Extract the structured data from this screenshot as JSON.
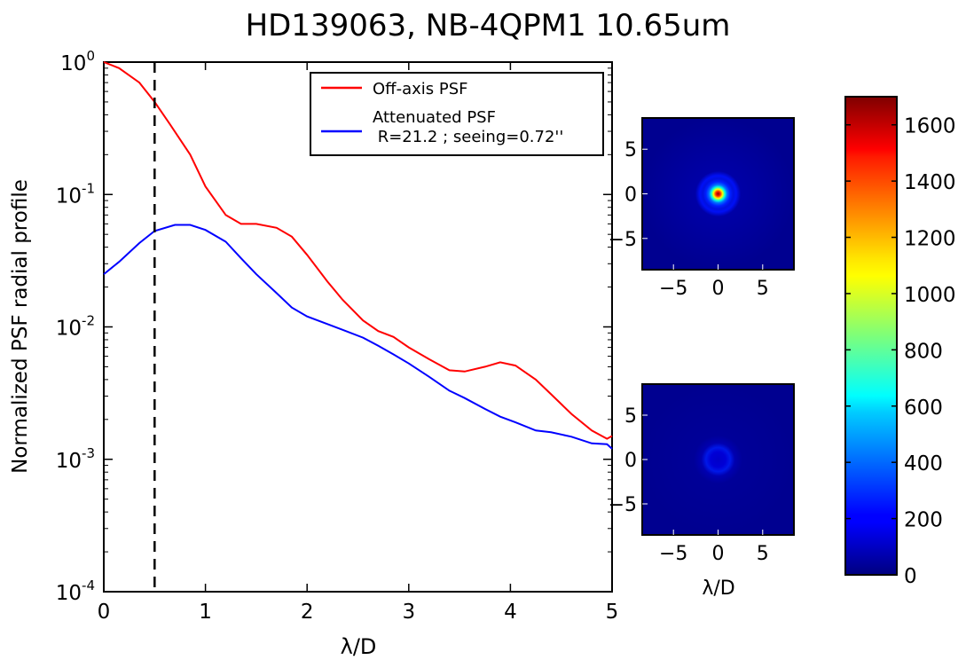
{
  "figure": {
    "title": "HD139063, NB-4QPM1 10.65um"
  },
  "chart_data": [
    {
      "type": "line",
      "title": "HD139063, NB-4QPM1 10.65um",
      "xlabel": "λ/D",
      "ylabel": "Normalized PSF radial profile",
      "xlim": [
        0,
        5
      ],
      "ylim": [
        0.0001,
        1
      ],
      "yscale": "log",
      "grid": false,
      "legend_position": "top-right",
      "x_ticks": [
        "0",
        "1",
        "2",
        "3",
        "4",
        "5"
      ],
      "y_ticks": [
        {
          "value": 1,
          "base": "10",
          "exp": "0"
        },
        {
          "value": 0.1,
          "base": "10",
          "exp": "-1"
        },
        {
          "value": 0.01,
          "base": "10",
          "exp": "-2"
        },
        {
          "value": 0.001,
          "base": "10",
          "exp": "-3"
        },
        {
          "value": 0.0001,
          "base": "10",
          "exp": "-4"
        }
      ],
      "vline": {
        "x": 0.5,
        "style": "dashed",
        "color": "#000000"
      },
      "series": [
        {
          "name": "Off-axis PSF",
          "color": "#ff0000",
          "x": [
            0,
            0.15,
            0.35,
            0.5,
            0.65,
            0.85,
            1.0,
            1.2,
            1.35,
            1.5,
            1.7,
            1.85,
            2.0,
            2.2,
            2.35,
            2.55,
            2.7,
            2.85,
            3.0,
            3.2,
            3.4,
            3.55,
            3.75,
            3.9,
            4.05,
            4.25,
            4.4,
            4.6,
            4.8,
            4.95,
            5.0
          ],
          "y": [
            1.0,
            0.9,
            0.7,
            0.5,
            0.34,
            0.2,
            0.115,
            0.07,
            0.06,
            0.06,
            0.056,
            0.048,
            0.035,
            0.022,
            0.016,
            0.0112,
            0.0093,
            0.0084,
            0.007,
            0.0057,
            0.0047,
            0.0046,
            0.005,
            0.0054,
            0.0051,
            0.004,
            0.0031,
            0.0022,
            0.00165,
            0.00143,
            0.0015
          ]
        },
        {
          "name": "Attenuated PSF\n R=21.2 ; seeing=0.72''",
          "color": "#0000ff",
          "x": [
            0,
            0.15,
            0.35,
            0.5,
            0.7,
            0.85,
            1.0,
            1.2,
            1.35,
            1.5,
            1.7,
            1.85,
            2.0,
            2.2,
            2.35,
            2.55,
            2.7,
            2.85,
            3.0,
            3.2,
            3.4,
            3.55,
            3.75,
            3.9,
            4.05,
            4.25,
            4.4,
            4.6,
            4.8,
            4.95,
            5.0
          ],
          "y": [
            0.025,
            0.031,
            0.043,
            0.053,
            0.059,
            0.059,
            0.054,
            0.044,
            0.033,
            0.025,
            0.018,
            0.014,
            0.012,
            0.0105,
            0.0095,
            0.0083,
            0.0072,
            0.0062,
            0.0053,
            0.0042,
            0.0033,
            0.0029,
            0.0024,
            0.0021,
            0.0019,
            0.00165,
            0.0016,
            0.00148,
            0.00132,
            0.0013,
            0.0012
          ]
        }
      ]
    },
    {
      "type": "heatmap",
      "description_source": "upper image panel (off-axis PSF)",
      "xlim": [
        -8.5,
        8.5
      ],
      "ylim": [
        -8.5,
        8.5
      ],
      "x_ticks": [
        "−5",
        "0",
        "5"
      ],
      "y_ticks": [
        "5",
        "0",
        "−5"
      ],
      "peak_value": 1700,
      "peak_position": [
        0,
        0
      ]
    },
    {
      "type": "heatmap",
      "description_source": "lower image panel (attenuated PSF)",
      "xlim": [
        -8.5,
        8.5
      ],
      "ylim": [
        -8.5,
        8.5
      ],
      "x_ticks": [
        "−5",
        "0",
        "5"
      ],
      "y_ticks": [
        "5",
        "0",
        "−5"
      ],
      "xlabel": "λ/D",
      "peak_value": 80,
      "peak_position": [
        0,
        0
      ]
    },
    {
      "type": "colorbar",
      "colormap": "jet",
      "range": [
        0,
        1700
      ],
      "ticks": [
        "0",
        "200",
        "400",
        "600",
        "800",
        "1000",
        "1200",
        "1400",
        "1600"
      ]
    }
  ]
}
